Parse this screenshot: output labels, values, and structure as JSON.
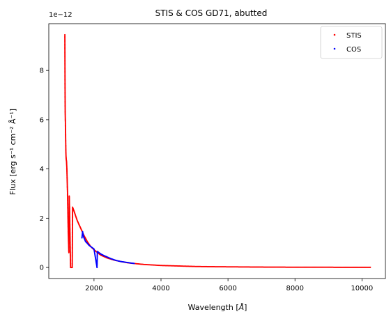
{
  "chart_data": {
    "type": "scatter",
    "title": "STIS & COS GD71, abutted",
    "xlabel_prefix": "Wavelength [",
    "xlabel_unit": "Å",
    "xlabel_suffix": "]",
    "ylabel": "Flux [erg s⁻¹ cm⁻² Å⁻¹]",
    "y_offset_label": "1e−12",
    "xlim": [
      650,
      10700
    ],
    "ylim": [
      -0.45,
      9.9
    ],
    "xticks": [
      2000,
      4000,
      6000,
      8000,
      10000
    ],
    "yticks": [
      0,
      2,
      4,
      6,
      8
    ],
    "legend_position": "top-right",
    "series": [
      {
        "name": "STIS",
        "color": "#ff0000",
        "curve": [
          [
            1130,
            9.45
          ],
          [
            1135,
            7.37
          ],
          [
            1140,
            6.3
          ],
          [
            1145,
            5.95
          ],
          [
            1150,
            5.55
          ],
          [
            1155,
            5.1
          ],
          [
            1160,
            4.7
          ],
          [
            1165,
            4.5
          ],
          [
            1170,
            4.4
          ],
          [
            1180,
            4.3
          ],
          [
            1190,
            4.0
          ],
          [
            1200,
            3.5
          ],
          [
            1210,
            3.0
          ],
          [
            1220,
            2.2
          ],
          [
            1230,
            1.5
          ],
          [
            1240,
            1.0
          ],
          [
            1250,
            0.6
          ],
          [
            1260,
            2.9
          ],
          [
            1270,
            2.4
          ],
          [
            1300,
            0.0
          ],
          [
            1350,
            0.0
          ],
          [
            1360,
            2.45
          ],
          [
            1400,
            2.3
          ],
          [
            1450,
            2.1
          ],
          [
            1500,
            1.9
          ],
          [
            1550,
            1.75
          ],
          [
            1600,
            1.6
          ],
          [
            1650,
            1.45
          ],
          [
            1700,
            1.3
          ],
          [
            1800,
            1.05
          ],
          [
            1900,
            0.85
          ],
          [
            2000,
            0.72
          ],
          [
            2200,
            0.5
          ],
          [
            2400,
            0.38
          ],
          [
            2600,
            0.3
          ],
          [
            2800,
            0.24
          ],
          [
            3000,
            0.19
          ],
          [
            3200,
            0.16
          ],
          [
            3500,
            0.12
          ],
          [
            4000,
            0.08
          ],
          [
            4500,
            0.06
          ],
          [
            5000,
            0.04
          ],
          [
            5500,
            0.03
          ],
          [
            6000,
            0.025
          ],
          [
            6500,
            0.02
          ],
          [
            7000,
            0.015
          ],
          [
            8000,
            0.01
          ],
          [
            9000,
            0.008
          ],
          [
            10000,
            0.006
          ],
          [
            10250,
            0.005
          ]
        ]
      },
      {
        "name": "COS",
        "color": "#0000ff",
        "curve": [
          [
            1640,
            1.2
          ],
          [
            1660,
            1.45
          ],
          [
            1680,
            1.3
          ],
          [
            1700,
            1.2
          ],
          [
            1750,
            1.05
          ],
          [
            1800,
            0.98
          ],
          [
            1850,
            0.9
          ],
          [
            1900,
            0.85
          ],
          [
            2000,
            0.75
          ],
          [
            2100,
            0.65
          ],
          [
            2200,
            0.55
          ],
          [
            2300,
            0.48
          ],
          [
            2400,
            0.42
          ],
          [
            2500,
            0.36
          ],
          [
            2600,
            0.31
          ],
          [
            2700,
            0.27
          ],
          [
            2800,
            0.24
          ],
          [
            2900,
            0.22
          ],
          [
            3000,
            0.2
          ],
          [
            3100,
            0.18
          ],
          [
            3200,
            0.16
          ],
          [
            2090,
            0.0
          ]
        ]
      }
    ]
  }
}
